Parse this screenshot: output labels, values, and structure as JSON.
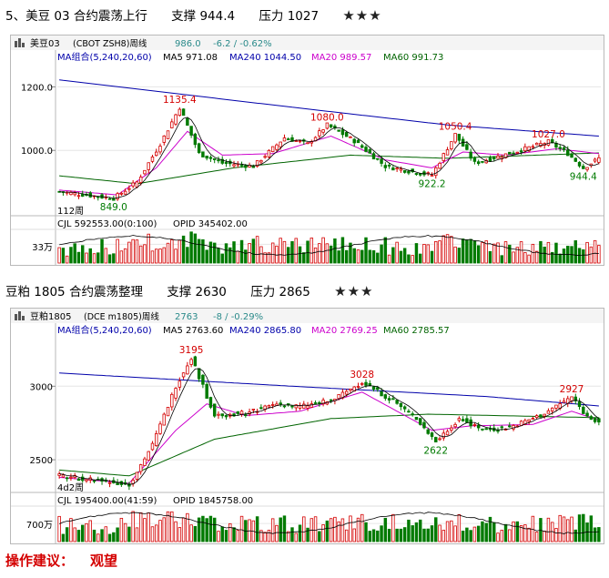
{
  "colors": {
    "up": "#d40000",
    "down": "#007a00",
    "ma5": "#000000",
    "ma20": "#cc00cc",
    "ma60": "#006400",
    "ma240": "#0000aa",
    "label": "#d40000",
    "teal": "#2a8a8a",
    "advice": "#d40000"
  },
  "icons": {
    "rating": "star-icon",
    "chart_type": "bar-chart-icon"
  },
  "charts": [
    {
      "heading": {
        "title": "5、美豆 03 合约震荡上行",
        "support": "支撑 944.4",
        "pressure": "压力 1027",
        "stars": "★★★"
      },
      "info_bar": {
        "name": "美豆03",
        "code": "(CBOT ZSH8)周线",
        "price": "986.0",
        "change": "-6.2 / -0.62%"
      },
      "ma_bar": {
        "group": "MA组合(5,240,20,60)",
        "ma5": "MA5 971.08",
        "ma240": "MA240 1044.50",
        "ma20": "MA20 989.57",
        "ma60": "MA60 991.73"
      },
      "period": "112周",
      "volume_bar": {
        "cjl": "CJL  592553.00(0:100)",
        "opid": "OPID  345402.00"
      },
      "volume_tick": "33万",
      "chart_data": {
        "type": "candlestick",
        "ylim": [
          800,
          1270
        ],
        "yticks": [
          {
            "value": 1200,
            "label": "1200.0"
          },
          {
            "value": 1000,
            "label": "1000.0"
          }
        ],
        "anchors": [
          {
            "i": 0,
            "v": 870
          },
          {
            "i": 8,
            "v": 858
          },
          {
            "i": 14,
            "v": 849
          },
          {
            "i": 20,
            "v": 900
          },
          {
            "i": 26,
            "v": 1020
          },
          {
            "i": 31,
            "v": 1135.4
          },
          {
            "i": 36,
            "v": 990
          },
          {
            "i": 42,
            "v": 960
          },
          {
            "i": 50,
            "v": 950
          },
          {
            "i": 58,
            "v": 1040
          },
          {
            "i": 64,
            "v": 1020
          },
          {
            "i": 69,
            "v": 1080
          },
          {
            "i": 76,
            "v": 1030
          },
          {
            "i": 84,
            "v": 950
          },
          {
            "i": 92,
            "v": 930
          },
          {
            "i": 96,
            "v": 922.2
          },
          {
            "i": 102,
            "v": 1050.4
          },
          {
            "i": 107,
            "v": 960
          },
          {
            "i": 113,
            "v": 980
          },
          {
            "i": 120,
            "v": 1005
          },
          {
            "i": 126,
            "v": 1027
          },
          {
            "i": 131,
            "v": 990
          },
          {
            "i": 135,
            "v": 944.4
          },
          {
            "i": 139,
            "v": 975
          }
        ],
        "count": 140,
        "labels": [
          {
            "i": 31,
            "v": 1135.4,
            "text": "1135.4",
            "pos": "above",
            "color": "#d40000"
          },
          {
            "i": 69,
            "v": 1080,
            "text": "1080.0",
            "pos": "above",
            "color": "#d40000"
          },
          {
            "i": 102,
            "v": 1050.4,
            "text": "1050.4",
            "pos": "above",
            "color": "#d40000"
          },
          {
            "i": 126,
            "v": 1027,
            "text": "1027.0",
            "pos": "above",
            "color": "#d40000"
          },
          {
            "i": 14,
            "v": 849,
            "text": "849.0",
            "pos": "below",
            "color": "#007a00"
          },
          {
            "i": 96,
            "v": 922.2,
            "text": "922.2",
            "pos": "below",
            "color": "#007a00"
          },
          {
            "i": 135,
            "v": 944.4,
            "text": "944.4",
            "pos": "below",
            "color": "#007a00"
          }
        ],
        "ma240": [
          {
            "i": 0,
            "v": 1222
          },
          {
            "i": 50,
            "v": 1150
          },
          {
            "i": 100,
            "v": 1080
          },
          {
            "i": 139,
            "v": 1045
          }
        ],
        "ma60": [
          {
            "i": 0,
            "v": 920
          },
          {
            "i": 20,
            "v": 895
          },
          {
            "i": 45,
            "v": 945
          },
          {
            "i": 75,
            "v": 985
          },
          {
            "i": 100,
            "v": 975
          },
          {
            "i": 139,
            "v": 992
          }
        ],
        "ma20": [
          {
            "i": 0,
            "v": 875
          },
          {
            "i": 15,
            "v": 860
          },
          {
            "i": 25,
            "v": 945
          },
          {
            "i": 33,
            "v": 1060
          },
          {
            "i": 42,
            "v": 985
          },
          {
            "i": 55,
            "v": 990
          },
          {
            "i": 70,
            "v": 1045
          },
          {
            "i": 84,
            "v": 970
          },
          {
            "i": 96,
            "v": 945
          },
          {
            "i": 104,
            "v": 995
          },
          {
            "i": 115,
            "v": 985
          },
          {
            "i": 128,
            "v": 1005
          },
          {
            "i": 139,
            "v": 990
          }
        ],
        "volume_ylim": [
          0,
          560000
        ],
        "volume_tick_value": 330000
      }
    },
    {
      "heading": {
        "title": "豆粕 1805 合约震荡整理",
        "support": "支撑 2630",
        "pressure": "压力 2865",
        "stars": "★★★"
      },
      "info_bar": {
        "name": "豆粕1805",
        "code": "(DCE m1805)周线",
        "price": "2763",
        "change": "-8 / -0.29%"
      },
      "ma_bar": {
        "group": "MA组合(5,240,20,60)",
        "ma5": "MA5 2763.60",
        "ma240": "MA240 2865.80",
        "ma20": "MA20 2769.25",
        "ma60": "MA60 2785.57"
      },
      "period": "4d2周",
      "volume_bar": {
        "cjl": "CJL  195400.00(41:59)",
        "opid": "OPID  1845758.00"
      },
      "volume_tick": "700万",
      "chart_data": {
        "type": "candlestick",
        "ylim": [
          2290,
          3330
        ],
        "yticks": [
          {
            "value": 3000,
            "label": "3000"
          },
          {
            "value": 2500,
            "label": "2500"
          }
        ],
        "anchors": [
          {
            "i": 0,
            "v": 2390
          },
          {
            "i": 10,
            "v": 2360
          },
          {
            "i": 18,
            "v": 2330
          },
          {
            "i": 24,
            "v": 2600
          },
          {
            "i": 30,
            "v": 3000
          },
          {
            "i": 34,
            "v": 3195
          },
          {
            "i": 40,
            "v": 2800
          },
          {
            "i": 48,
            "v": 2820
          },
          {
            "i": 56,
            "v": 2880
          },
          {
            "i": 62,
            "v": 2860
          },
          {
            "i": 70,
            "v": 2900
          },
          {
            "i": 78,
            "v": 3028
          },
          {
            "i": 86,
            "v": 2900
          },
          {
            "i": 92,
            "v": 2780
          },
          {
            "i": 97,
            "v": 2622
          },
          {
            "i": 103,
            "v": 2780
          },
          {
            "i": 110,
            "v": 2700
          },
          {
            "i": 116,
            "v": 2720
          },
          {
            "i": 124,
            "v": 2800
          },
          {
            "i": 132,
            "v": 2927
          },
          {
            "i": 136,
            "v": 2790
          },
          {
            "i": 139,
            "v": 2763
          }
        ],
        "count": 140,
        "labels": [
          {
            "i": 34,
            "v": 3195,
            "text": "3195",
            "pos": "above",
            "color": "#d40000"
          },
          {
            "i": 78,
            "v": 3028,
            "text": "3028",
            "pos": "above",
            "color": "#d40000"
          },
          {
            "i": 132,
            "v": 2927,
            "text": "2927",
            "pos": "above",
            "color": "#d40000"
          },
          {
            "i": 97,
            "v": 2622,
            "text": "2622",
            "pos": "below",
            "color": "#007a00"
          }
        ],
        "ma240": [
          {
            "i": 0,
            "v": 3090
          },
          {
            "i": 60,
            "v": 3000
          },
          {
            "i": 110,
            "v": 2930
          },
          {
            "i": 139,
            "v": 2866
          }
        ],
        "ma60": [
          {
            "i": 0,
            "v": 2430
          },
          {
            "i": 18,
            "v": 2390
          },
          {
            "i": 40,
            "v": 2640
          },
          {
            "i": 70,
            "v": 2780
          },
          {
            "i": 95,
            "v": 2810
          },
          {
            "i": 139,
            "v": 2786
          }
        ],
        "ma20": [
          {
            "i": 0,
            "v": 2380
          },
          {
            "i": 18,
            "v": 2340
          },
          {
            "i": 30,
            "v": 2700
          },
          {
            "i": 38,
            "v": 2880
          },
          {
            "i": 48,
            "v": 2800
          },
          {
            "i": 62,
            "v": 2830
          },
          {
            "i": 78,
            "v": 2960
          },
          {
            "i": 96,
            "v": 2700
          },
          {
            "i": 106,
            "v": 2730
          },
          {
            "i": 122,
            "v": 2740
          },
          {
            "i": 132,
            "v": 2830
          },
          {
            "i": 139,
            "v": 2769
          }
        ],
        "volume_ylim": [
          0,
          13000000
        ],
        "volume_tick_value": 7000000
      }
    }
  ],
  "advice": {
    "label": "操作建议：",
    "value": "观望"
  }
}
